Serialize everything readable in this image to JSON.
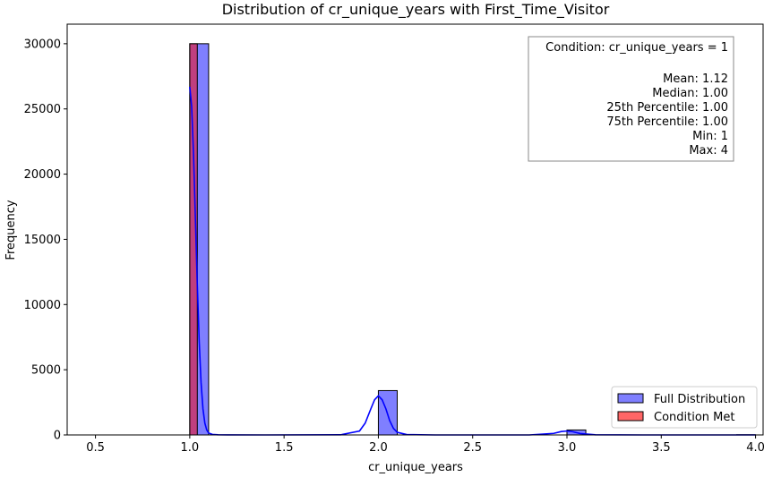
{
  "chart_data": {
    "type": "bar",
    "title": "Distribution of cr_unique_years with First_Time_Visitor",
    "xlabel": "cr_unique_years",
    "ylabel": "Frequency",
    "xlim": [
      0.35,
      4.04
    ],
    "ylim": [
      0,
      31500
    ],
    "x_ticks": [
      0.5,
      1.0,
      1.5,
      2.0,
      2.5,
      3.0,
      3.5,
      4.0
    ],
    "x_tick_labels": [
      "0.5",
      "1.0",
      "1.5",
      "2.0",
      "2.5",
      "3.0",
      "3.5",
      "4.0"
    ],
    "y_ticks": [
      0,
      5000,
      10000,
      15000,
      20000,
      25000,
      30000
    ],
    "y_tick_labels": [
      "0",
      "5000",
      "10000",
      "15000",
      "20000",
      "25000",
      "30000"
    ],
    "grid": false,
    "legend_position": "bottom-right",
    "series": [
      {
        "name": "Full Distribution",
        "color": "#0000ff",
        "bins": [
          {
            "x0": 1.0,
            "x1": 1.1,
            "value": 30000
          },
          {
            "x0": 2.0,
            "x1": 2.1,
            "value": 3400
          },
          {
            "x0": 3.0,
            "x1": 3.1,
            "value": 380
          },
          {
            "x0": 3.9,
            "x1": 4.0,
            "value": 15
          }
        ]
      },
      {
        "name": "Condition Met",
        "color": "#ff0000",
        "bins": [
          {
            "x0": 1.0,
            "x1": 1.04,
            "value": 30000
          }
        ]
      }
    ],
    "kde": {
      "color": "#0000ff",
      "x": [
        1.0,
        1.01,
        1.02,
        1.03,
        1.04,
        1.05,
        1.06,
        1.07,
        1.08,
        1.09,
        1.1,
        1.12,
        1.15,
        1.2,
        1.4,
        1.8,
        1.9,
        1.93,
        1.96,
        1.98,
        2.0,
        2.02,
        2.04,
        2.06,
        2.08,
        2.1,
        2.15,
        2.3,
        2.8,
        2.93,
        2.97,
        3.0,
        3.03,
        3.07,
        3.15,
        3.4,
        4.0
      ],
      "y": [
        26700,
        25200,
        21500,
        16500,
        11500,
        7200,
        4000,
        2000,
        900,
        380,
        150,
        40,
        10,
        3,
        0,
        10,
        300,
        900,
        2000,
        2700,
        3000,
        2700,
        2000,
        1100,
        500,
        200,
        30,
        0,
        0,
        120,
        260,
        300,
        250,
        110,
        15,
        0,
        0
      ]
    },
    "stats_box": {
      "condition": "Condition: cr_unique_years = 1",
      "lines": [
        "Mean: 1.12",
        "Median: 1.00",
        "25th Percentile: 1.00",
        "75th Percentile: 1.00",
        "Min: 1",
        "Max: 4"
      ]
    }
  }
}
